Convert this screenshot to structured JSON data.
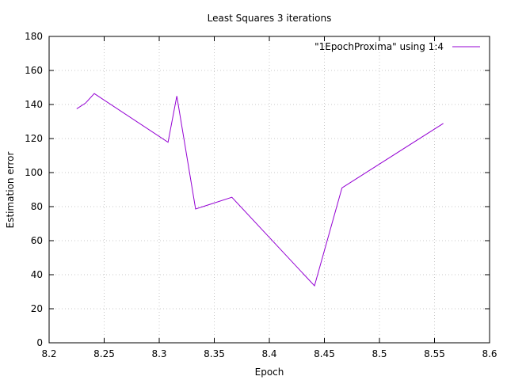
{
  "chart_data": {
    "type": "line",
    "title": "Least Squares 3 iterations",
    "xlabel": "Epoch",
    "ylabel": "Estimation error",
    "xlim": [
      8.2,
      8.6
    ],
    "ylim": [
      0,
      180
    ],
    "xticks": [
      "8.2",
      "8.25",
      "8.3",
      "8.35",
      "8.4",
      "8.45",
      "8.5",
      "8.55",
      "8.6"
    ],
    "yticks": [
      "0",
      "20",
      "40",
      "60",
      "80",
      "100",
      "120",
      "140",
      "160",
      "180"
    ],
    "grid": true,
    "legend_position": "top-right",
    "series": [
      {
        "name": "\"1EpochProxima\" using 1:4",
        "color": "#9400d3",
        "x": [
          8.225,
          8.233,
          8.241,
          8.308,
          8.316,
          8.333,
          8.366,
          8.441,
          8.466,
          8.558
        ],
        "y": [
          137.5,
          140.8,
          146.4,
          117.8,
          145.0,
          78.6,
          85.5,
          33.5,
          91.0,
          128.9
        ]
      }
    ]
  }
}
